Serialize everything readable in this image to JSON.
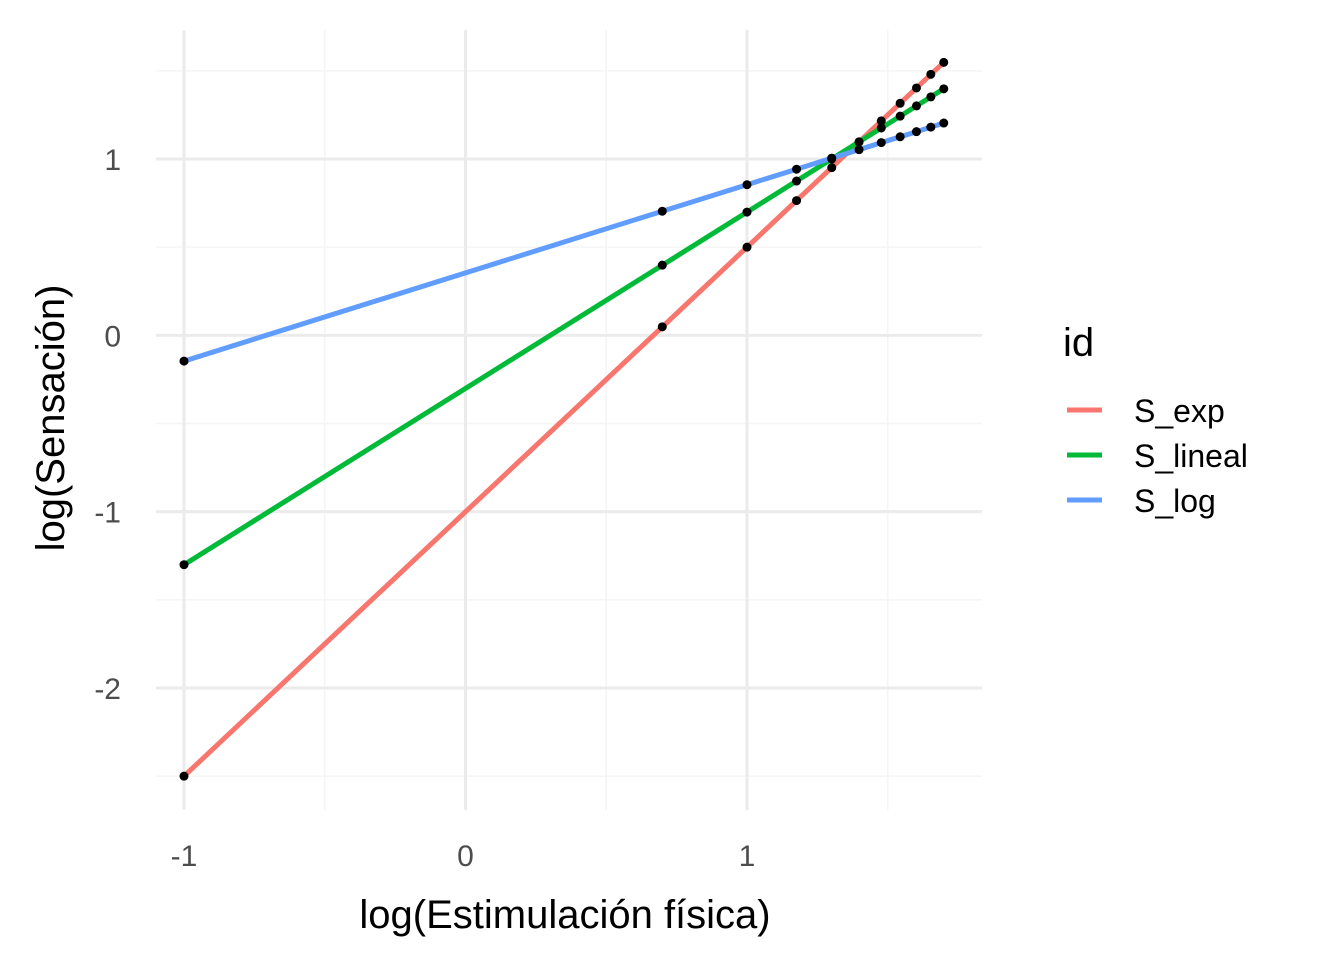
{
  "chart_data": {
    "type": "line",
    "xlabel": "log(Estimulación física)",
    "ylabel": "log(Sensación)",
    "xlim": [
      -1.1,
      1.85
    ],
    "ylim": [
      -2.7,
      1.75
    ],
    "x_ticks": [
      -1,
      0,
      1
    ],
    "x_tick_labels": [
      "-1",
      "0",
      "1"
    ],
    "y_ticks": [
      1,
      0,
      -1,
      -2
    ],
    "y_tick_labels": [
      "1",
      "0",
      "-1",
      "-2"
    ],
    "grid": true,
    "legend": {
      "title": "id",
      "placement": "right"
    },
    "series": [
      {
        "name": "S_exp",
        "color": "#F8766D",
        "x": [
          -1,
          0.699,
          1,
          1.176,
          1.301,
          1.398,
          1.477,
          1.544,
          1.602,
          1.653,
          1.699
        ],
        "y": [
          -2.5,
          0.048,
          0.5,
          0.764,
          0.951,
          1.097,
          1.216,
          1.316,
          1.403,
          1.48,
          1.548
        ]
      },
      {
        "name": "S_lineal",
        "color": "#00BA38",
        "x": [
          -1,
          0.699,
          1,
          1.176,
          1.301,
          1.398,
          1.477,
          1.544,
          1.602,
          1.653,
          1.699
        ],
        "y": [
          -1.301,
          0.398,
          0.699,
          0.875,
          1.0,
          1.097,
          1.176,
          1.243,
          1.301,
          1.352,
          1.398
        ]
      },
      {
        "name": "S_log",
        "color": "#619CFF",
        "x": [
          -1,
          0.699,
          1,
          1.176,
          1.301,
          1.398,
          1.477,
          1.544,
          1.602,
          1.653,
          1.699
        ],
        "y": [
          -0.146,
          0.704,
          0.854,
          0.942,
          1.005,
          1.053,
          1.093,
          1.126,
          1.155,
          1.181,
          1.204
        ]
      }
    ]
  }
}
